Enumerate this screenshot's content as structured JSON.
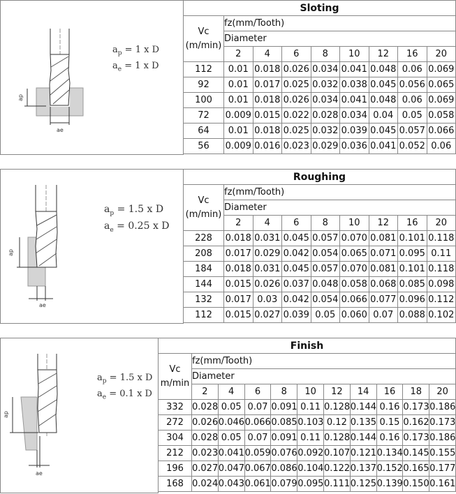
{
  "sections": [
    {
      "title": "Sloting",
      "formula": {
        "ap": "1 x D",
        "ae": "1 x D"
      },
      "vc_label": "Vc\n(m/min)",
      "fz_label": "fz(mm/Tooth)",
      "diameter_label": "Diameter",
      "diameters": [
        "2",
        "4",
        "6",
        "8",
        "10",
        "12",
        "16",
        "20"
      ],
      "rows": [
        {
          "vc": "112",
          "values": [
            "0.01",
            "0.018",
            "0.026",
            "0.034",
            "0.041",
            "0.048",
            "0.06",
            "0.069"
          ]
        },
        {
          "vc": "92",
          "values": [
            "0.01",
            "0.017",
            "0.025",
            "0.032",
            "0.038",
            "0.045",
            "0.056",
            "0.065"
          ]
        },
        {
          "vc": "100",
          "values": [
            "0.01",
            "0.018",
            "0.026",
            "0.034",
            "0.041",
            "0.048",
            "0.06",
            "0.069"
          ]
        },
        {
          "vc": "72",
          "values": [
            "0.009",
            "0.015",
            "0.022",
            "0.028",
            "0.034",
            "0.04",
            "0.05",
            "0.058"
          ]
        },
        {
          "vc": "64",
          "values": [
            "0.01",
            "0.018",
            "0.025",
            "0.032",
            "0.039",
            "0.045",
            "0.057",
            "0.066"
          ]
        },
        {
          "vc": "56",
          "values": [
            "0.009",
            "0.016",
            "0.023",
            "0.029",
            "0.036",
            "0.041",
            "0.052",
            "0.06"
          ]
        }
      ]
    },
    {
      "title": "Roughing",
      "formula": {
        "ap": "1.5 x D",
        "ae": "0.25 x D"
      },
      "vc_label": "Vc\n(m/min)",
      "fz_label": "fz(mm/Tooth)",
      "diameter_label": "Diameter",
      "diameters": [
        "2",
        "4",
        "6",
        "8",
        "10",
        "12",
        "16",
        "20"
      ],
      "rows": [
        {
          "vc": "228",
          "values": [
            "0.018",
            "0.031",
            "0.045",
            "0.057",
            "0.070",
            "0.081",
            "0.101",
            "0.118"
          ]
        },
        {
          "vc": "208",
          "values": [
            "0.017",
            "0.029",
            "0.042",
            "0.054",
            "0.065",
            "0.071",
            "0.095",
            "0.11"
          ]
        },
        {
          "vc": "184",
          "values": [
            "0.018",
            "0.031",
            "0.045",
            "0.057",
            "0.070",
            "0.081",
            "0.101",
            "0.118"
          ]
        },
        {
          "vc": "144",
          "values": [
            "0.015",
            "0.026",
            "0.037",
            "0.048",
            "0.058",
            "0.068",
            "0.085",
            "0.098"
          ]
        },
        {
          "vc": "132",
          "values": [
            "0.017",
            "0.03",
            "0.042",
            "0.054",
            "0.066",
            "0.077",
            "0.096",
            "0.112"
          ]
        },
        {
          "vc": "112",
          "values": [
            "0.015",
            "0.027",
            "0.039",
            "0.05",
            "0.060",
            "0.07",
            "0.088",
            "0.102"
          ]
        }
      ]
    },
    {
      "title": "Finish",
      "formula": {
        "ap": "1.5 x D",
        "ae": "0.1 x D"
      },
      "vc_label": "Vc\nm/min",
      "fz_label": "fz(mm/Tooth)",
      "diameter_label": "Diameter",
      "diameters": [
        "2",
        "4",
        "6",
        "8",
        "10",
        "12",
        "14",
        "16",
        "18",
        "20"
      ],
      "rows": [
        {
          "vc": "332",
          "values": [
            "0.028",
            "0.05",
            "0.07",
            "0.091",
            "0.11",
            "0.128",
            "0.144",
            "0.16",
            "0.173",
            "0.186"
          ]
        },
        {
          "vc": "272",
          "values": [
            "0.026",
            "0.046",
            "0.066",
            "0.085",
            "0.103",
            "0.12",
            "0.135",
            "0.15",
            "0.162",
            "0.173"
          ]
        },
        {
          "vc": "304",
          "values": [
            "0.028",
            "0.05",
            "0.07",
            "0.091",
            "0.11",
            "0.128",
            "0.144",
            "0.16",
            "0.173",
            "0.186"
          ]
        },
        {
          "vc": "212",
          "values": [
            "0.023",
            "0.041",
            "0.059",
            "0.076",
            "0.092",
            "0.107",
            "0.121",
            "0.134",
            "0.145",
            "0.155"
          ]
        },
        {
          "vc": "196",
          "values": [
            "0.027",
            "0.047",
            "0.067",
            "0.086",
            "0.104",
            "0.122",
            "0.137",
            "0.152",
            "0.165",
            "0.177"
          ]
        },
        {
          "vc": "168",
          "values": [
            "0.024",
            "0.043",
            "0.061",
            "0.079",
            "0.095",
            "0.111",
            "0.125",
            "0.139",
            "0.150",
            "0.161"
          ]
        }
      ]
    }
  ],
  "diagram_labels": {
    "ap": "a",
    "ap_sub": "p",
    "ae": "a",
    "ae_sub": "e",
    "eq": " = "
  }
}
